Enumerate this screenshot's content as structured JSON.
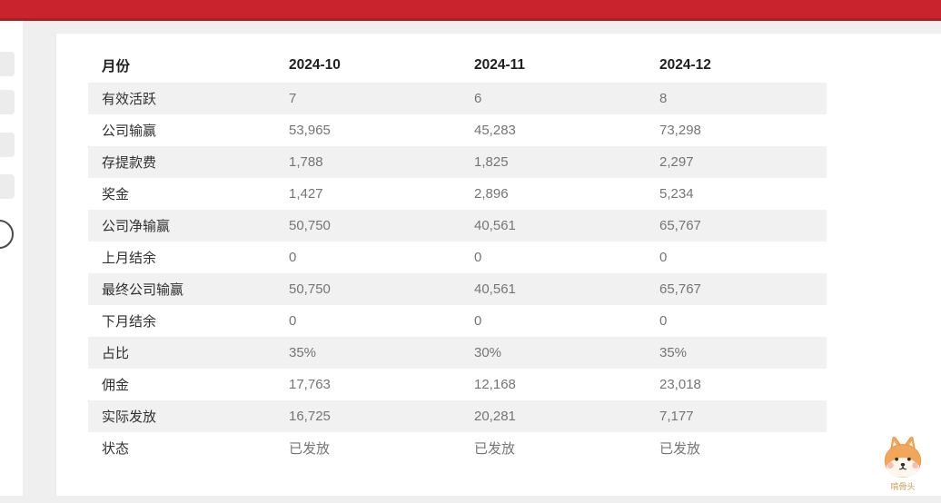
{
  "colors": {
    "accent_red": "#c9242e",
    "accent_red_dark": "#a81f28",
    "row_stripe": "#f1f1f1",
    "value_text": "#757575",
    "mascot_orange": "#f2a65a"
  },
  "table": {
    "columns": [
      "月份",
      "2024-10",
      "2024-11",
      "2024-12"
    ],
    "rows": [
      {
        "cells": [
          "有效活跃",
          "7",
          "6",
          "8"
        ]
      },
      {
        "cells": [
          "公司输赢",
          "53,965",
          "45,283",
          "73,298"
        ]
      },
      {
        "cells": [
          "存提款费",
          "1,788",
          "1,825",
          "2,297"
        ]
      },
      {
        "cells": [
          "奖金",
          "1,427",
          "2,896",
          "5,234"
        ]
      },
      {
        "cells": [
          "公司净输赢",
          "50,750",
          "40,561",
          "65,767"
        ]
      },
      {
        "cells": [
          "上月结余",
          "0",
          "0",
          "0"
        ]
      },
      {
        "cells": [
          "最终公司输赢",
          "50,750",
          "40,561",
          "65,767"
        ]
      },
      {
        "cells": [
          "下月结余",
          "0",
          "0",
          "0"
        ]
      },
      {
        "cells": [
          "占比",
          "35%",
          "30%",
          "35%"
        ]
      },
      {
        "cells": [
          "佣金",
          "17,763",
          "12,168",
          "23,018"
        ]
      },
      {
        "cells": [
          "实际发放",
          "16,725",
          "20,281",
          "7,177"
        ]
      },
      {
        "cells": [
          "状态",
          "已发放",
          "已发放",
          "已发放"
        ]
      }
    ]
  },
  "mascot": {
    "label": "啃骨头"
  }
}
